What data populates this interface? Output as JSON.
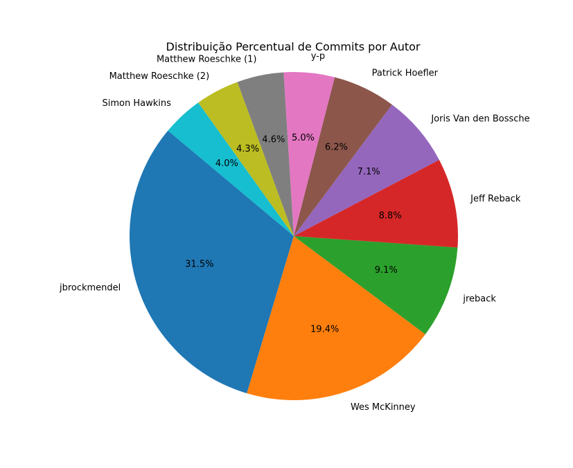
{
  "chart_data": {
    "type": "pie",
    "title": "Distribuição Percentual de Commits por Autor",
    "start_angle_deg": 140,
    "direction": "counterclockwise",
    "slices": [
      {
        "label": "jbrockmendel",
        "value": 31.5,
        "pct_label": "31.5%",
        "color": "#1f77b4"
      },
      {
        "label": "Wes McKinney",
        "value": 19.4,
        "pct_label": "19.4%",
        "color": "#ff7f0e"
      },
      {
        "label": "jreback",
        "value": 9.1,
        "pct_label": "9.1%",
        "color": "#2ca02c"
      },
      {
        "label": "Jeff Reback",
        "value": 8.8,
        "pct_label": "8.8%",
        "color": "#d62728"
      },
      {
        "label": "Joris Van den Bossche",
        "value": 7.1,
        "pct_label": "7.1%",
        "color": "#9467bd"
      },
      {
        "label": "Patrick Hoefler",
        "value": 6.2,
        "pct_label": "6.2%",
        "color": "#8c564b"
      },
      {
        "label": "y-p",
        "value": 5.0,
        "pct_label": "5.0%",
        "color": "#e377c2"
      },
      {
        "label": "Matthew Roeschke (1)",
        "value": 4.6,
        "pct_label": "4.6%",
        "color": "#7f7f7f"
      },
      {
        "label": "Matthew Roeschke (2)",
        "value": 4.3,
        "pct_label": "4.3%",
        "color": "#bcbd22"
      },
      {
        "label": "Simon Hawkins",
        "value": 4.0,
        "pct_label": "4.0%",
        "color": "#17becf"
      }
    ]
  }
}
